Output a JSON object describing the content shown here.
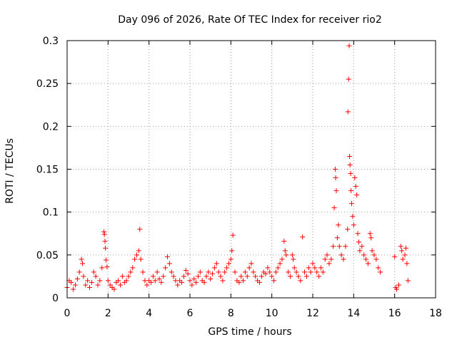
{
  "chart_data": {
    "type": "scatter",
    "title": "Day 096 of 2026, Rate Of TEC Index for receiver rio2",
    "xlabel": "GPS time / hours",
    "ylabel": "ROTI / TECUs",
    "xlim": [
      0,
      18
    ],
    "ylim": [
      0,
      0.3
    ],
    "xticks": [
      0,
      2,
      4,
      6,
      8,
      10,
      12,
      14,
      16,
      18
    ],
    "xtick_labels": [
      "0",
      "2",
      "4",
      "6",
      "8",
      "10",
      "12",
      "14",
      "16",
      "18"
    ],
    "yticks": [
      0,
      0.05,
      0.1,
      0.15,
      0.2,
      0.25,
      0.3
    ],
    "ytick_labels": [
      "0",
      "0.05",
      "0.1",
      "0.15",
      "0.2",
      "0.25",
      "0.3"
    ],
    "grid": true,
    "marker": "+",
    "color": "#ff0000",
    "series": [
      {
        "name": "rio2",
        "points": [
          [
            0.0,
            0.012
          ],
          [
            0.1,
            0.02
          ],
          [
            0.2,
            0.018
          ],
          [
            0.3,
            0.01
          ],
          [
            0.4,
            0.015
          ],
          [
            0.5,
            0.022
          ],
          [
            0.6,
            0.03
          ],
          [
            0.7,
            0.045
          ],
          [
            0.75,
            0.04
          ],
          [
            0.8,
            0.025
          ],
          [
            0.9,
            0.015
          ],
          [
            1.0,
            0.02
          ],
          [
            1.1,
            0.012
          ],
          [
            1.2,
            0.018
          ],
          [
            1.3,
            0.03
          ],
          [
            1.4,
            0.025
          ],
          [
            1.5,
            0.015
          ],
          [
            1.6,
            0.02
          ],
          [
            1.7,
            0.035
          ],
          [
            1.8,
            0.077
          ],
          [
            1.82,
            0.074
          ],
          [
            1.85,
            0.066
          ],
          [
            1.87,
            0.058
          ],
          [
            1.9,
            0.044
          ],
          [
            1.95,
            0.036
          ],
          [
            2.0,
            0.02
          ],
          [
            2.1,
            0.015
          ],
          [
            2.2,
            0.012
          ],
          [
            2.3,
            0.01
          ],
          [
            2.4,
            0.018
          ],
          [
            2.5,
            0.02
          ],
          [
            2.6,
            0.015
          ],
          [
            2.7,
            0.025
          ],
          [
            2.8,
            0.018
          ],
          [
            2.9,
            0.02
          ],
          [
            3.0,
            0.025
          ],
          [
            3.1,
            0.03
          ],
          [
            3.2,
            0.035
          ],
          [
            3.3,
            0.045
          ],
          [
            3.4,
            0.05
          ],
          [
            3.5,
            0.055
          ],
          [
            3.55,
            0.08
          ],
          [
            3.6,
            0.045
          ],
          [
            3.7,
            0.03
          ],
          [
            3.8,
            0.02
          ],
          [
            3.9,
            0.015
          ],
          [
            4.0,
            0.02
          ],
          [
            4.1,
            0.018
          ],
          [
            4.2,
            0.025
          ],
          [
            4.3,
            0.02
          ],
          [
            4.4,
            0.03
          ],
          [
            4.5,
            0.022
          ],
          [
            4.6,
            0.018
          ],
          [
            4.7,
            0.025
          ],
          [
            4.8,
            0.035
          ],
          [
            4.9,
            0.048
          ],
          [
            5.0,
            0.04
          ],
          [
            5.1,
            0.03
          ],
          [
            5.2,
            0.025
          ],
          [
            5.3,
            0.02
          ],
          [
            5.4,
            0.015
          ],
          [
            5.5,
            0.02
          ],
          [
            5.6,
            0.018
          ],
          [
            5.7,
            0.025
          ],
          [
            5.8,
            0.032
          ],
          [
            5.9,
            0.028
          ],
          [
            6.0,
            0.02
          ],
          [
            6.1,
            0.015
          ],
          [
            6.2,
            0.022
          ],
          [
            6.3,
            0.018
          ],
          [
            6.4,
            0.025
          ],
          [
            6.5,
            0.03
          ],
          [
            6.6,
            0.02
          ],
          [
            6.7,
            0.018
          ],
          [
            6.8,
            0.025
          ],
          [
            6.9,
            0.03
          ],
          [
            7.0,
            0.022
          ],
          [
            7.1,
            0.028
          ],
          [
            7.2,
            0.035
          ],
          [
            7.3,
            0.04
          ],
          [
            7.4,
            0.03
          ],
          [
            7.5,
            0.025
          ],
          [
            7.6,
            0.02
          ],
          [
            7.7,
            0.03
          ],
          [
            7.8,
            0.035
          ],
          [
            7.9,
            0.04
          ],
          [
            8.0,
            0.045
          ],
          [
            8.05,
            0.055
          ],
          [
            8.1,
            0.073
          ],
          [
            8.2,
            0.03
          ],
          [
            8.3,
            0.02
          ],
          [
            8.4,
            0.018
          ],
          [
            8.5,
            0.025
          ],
          [
            8.6,
            0.02
          ],
          [
            8.7,
            0.03
          ],
          [
            8.8,
            0.025
          ],
          [
            8.9,
            0.035
          ],
          [
            9.0,
            0.04
          ],
          [
            9.1,
            0.03
          ],
          [
            9.2,
            0.025
          ],
          [
            9.3,
            0.02
          ],
          [
            9.4,
            0.018
          ],
          [
            9.5,
            0.025
          ],
          [
            9.6,
            0.03
          ],
          [
            9.7,
            0.028
          ],
          [
            9.8,
            0.035
          ],
          [
            9.9,
            0.03
          ],
          [
            10.0,
            0.025
          ],
          [
            10.1,
            0.02
          ],
          [
            10.2,
            0.03
          ],
          [
            10.3,
            0.035
          ],
          [
            10.4,
            0.04
          ],
          [
            10.5,
            0.045
          ],
          [
            10.6,
            0.066
          ],
          [
            10.65,
            0.055
          ],
          [
            10.7,
            0.05
          ],
          [
            10.8,
            0.03
          ],
          [
            10.9,
            0.025
          ],
          [
            11.0,
            0.05
          ],
          [
            11.05,
            0.045
          ],
          [
            11.1,
            0.035
          ],
          [
            11.2,
            0.03
          ],
          [
            11.3,
            0.025
          ],
          [
            11.4,
            0.02
          ],
          [
            11.5,
            0.071
          ],
          [
            11.6,
            0.03
          ],
          [
            11.7,
            0.025
          ],
          [
            11.8,
            0.035
          ],
          [
            11.9,
            0.03
          ],
          [
            12.0,
            0.04
          ],
          [
            12.1,
            0.035
          ],
          [
            12.2,
            0.03
          ],
          [
            12.3,
            0.025
          ],
          [
            12.4,
            0.035
          ],
          [
            12.5,
            0.03
          ],
          [
            12.6,
            0.045
          ],
          [
            12.7,
            0.05
          ],
          [
            12.8,
            0.04
          ],
          [
            12.9,
            0.045
          ],
          [
            13.0,
            0.06
          ],
          [
            13.05,
            0.105
          ],
          [
            13.1,
            0.15
          ],
          [
            13.12,
            0.14
          ],
          [
            13.15,
            0.125
          ],
          [
            13.2,
            0.07
          ],
          [
            13.25,
            0.085
          ],
          [
            13.3,
            0.06
          ],
          [
            13.4,
            0.05
          ],
          [
            13.5,
            0.045
          ],
          [
            13.6,
            0.06
          ],
          [
            13.7,
            0.08
          ],
          [
            13.72,
            0.217
          ],
          [
            13.75,
            0.255
          ],
          [
            13.78,
            0.294
          ],
          [
            13.8,
            0.165
          ],
          [
            13.82,
            0.155
          ],
          [
            13.85,
            0.145
          ],
          [
            13.87,
            0.125
          ],
          [
            13.9,
            0.11
          ],
          [
            13.95,
            0.095
          ],
          [
            14.0,
            0.085
          ],
          [
            14.05,
            0.14
          ],
          [
            14.1,
            0.13
          ],
          [
            14.15,
            0.12
          ],
          [
            14.2,
            0.075
          ],
          [
            14.25,
            0.065
          ],
          [
            14.3,
            0.055
          ],
          [
            14.4,
            0.06
          ],
          [
            14.5,
            0.05
          ],
          [
            14.6,
            0.045
          ],
          [
            14.7,
            0.04
          ],
          [
            14.8,
            0.075
          ],
          [
            14.85,
            0.07
          ],
          [
            14.9,
            0.055
          ],
          [
            15.0,
            0.05
          ],
          [
            15.1,
            0.045
          ],
          [
            15.2,
            0.035
          ],
          [
            15.3,
            0.03
          ],
          [
            16.0,
            0.048
          ],
          [
            16.05,
            0.012
          ],
          [
            16.1,
            0.01
          ],
          [
            16.2,
            0.015
          ],
          [
            16.3,
            0.06
          ],
          [
            16.35,
            0.055
          ],
          [
            16.4,
            0.045
          ],
          [
            16.5,
            0.05
          ],
          [
            16.55,
            0.058
          ],
          [
            16.6,
            0.04
          ],
          [
            16.65,
            0.02
          ]
        ]
      }
    ]
  }
}
